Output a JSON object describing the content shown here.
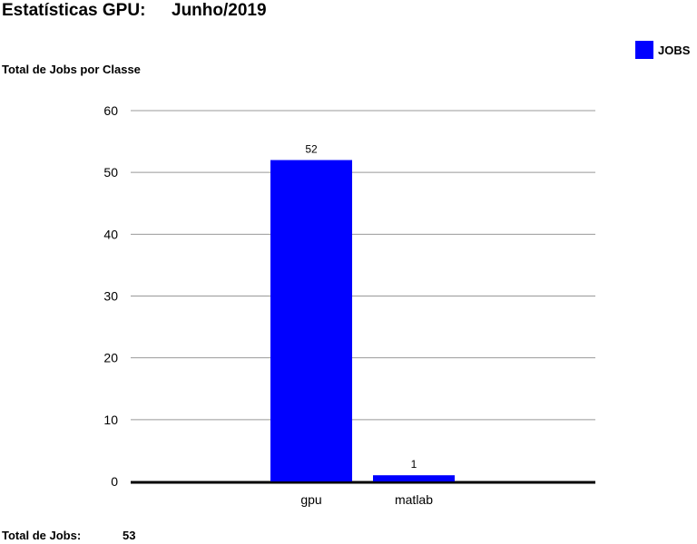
{
  "header": {
    "title": "Estatísticas GPU:",
    "period": "Junho/2019",
    "subtitle": "Total de Jobs por Classe"
  },
  "legend": {
    "label": "JOBS",
    "color": "#0000ff"
  },
  "footer": {
    "label": "Total de Jobs:",
    "value": "53"
  },
  "chart_data": {
    "type": "bar",
    "categories": [
      "gpu",
      "matlab"
    ],
    "series": [
      {
        "name": "JOBS",
        "values": [
          52,
          1
        ],
        "color": "#0000ff"
      }
    ],
    "data_labels": [
      "52",
      "1"
    ],
    "ylim": [
      0,
      60
    ],
    "yticks": [
      0,
      10,
      20,
      30,
      40,
      50,
      60
    ],
    "grid": true,
    "legend_position": "top-right"
  }
}
